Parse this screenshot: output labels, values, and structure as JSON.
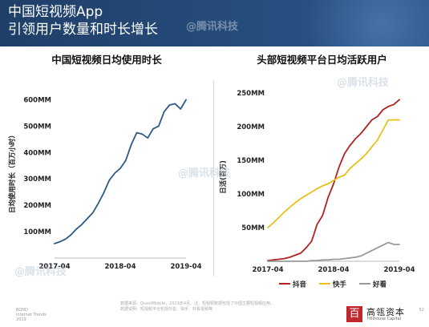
{
  "slide": {
    "title_line1": "中国短视频App",
    "title_line2": "引领用户数量和时长增长"
  },
  "chart_data": [
    {
      "type": "line",
      "title": "中国短视频日均使用时长",
      "xlabel": "",
      "ylabel": "日均使用时长（百万小时）",
      "x_ticks": [
        "2017-04",
        "2018-04",
        "2019-04"
      ],
      "y_ticks": [
        "100MM",
        "200MM",
        "300MM",
        "400MM",
        "500MM",
        "600MM"
      ],
      "ylim": [
        0,
        650
      ],
      "grid": false,
      "x": [
        "2017-04",
        "2017-05",
        "2017-06",
        "2017-07",
        "2017-08",
        "2017-09",
        "2017-10",
        "2017-11",
        "2017-12",
        "2018-01",
        "2018-02",
        "2018-03",
        "2018-04",
        "2018-05",
        "2018-06",
        "2018-07",
        "2018-08",
        "2018-09",
        "2018-10",
        "2018-11",
        "2018-12",
        "2019-01",
        "2019-02",
        "2019-03",
        "2019-04"
      ],
      "series": [
        {
          "name": "",
          "color": "#2c5a86",
          "values": [
            55,
            62,
            72,
            88,
            110,
            128,
            150,
            172,
            208,
            248,
            295,
            322,
            340,
            370,
            430,
            475,
            470,
            455,
            490,
            500,
            555,
            580,
            585,
            565,
            600
          ]
        }
      ]
    },
    {
      "type": "line",
      "title": "头部短视频平台日均活跃用户",
      "xlabel": "",
      "ylabel": "日活(百万)",
      "x_ticks": [
        "2017-04",
        "2018-04",
        "2019-04"
      ],
      "y_ticks": [
        "50MM",
        "100MM",
        "150MM",
        "200MM",
        "250MM"
      ],
      "ylim": [
        0,
        250
      ],
      "grid": false,
      "legend": "bottom",
      "x": [
        "2017-04",
        "2017-05",
        "2017-06",
        "2017-07",
        "2017-08",
        "2017-09",
        "2017-10",
        "2017-11",
        "2017-12",
        "2018-01",
        "2018-02",
        "2018-03",
        "2018-04",
        "2018-05",
        "2018-06",
        "2018-07",
        "2018-08",
        "2018-09",
        "2018-10",
        "2018-11",
        "2018-12",
        "2019-01",
        "2019-02",
        "2019-03",
        "2019-04"
      ],
      "series": [
        {
          "name": "抖音",
          "color": "#b22222",
          "values": [
            1,
            2,
            3,
            4,
            6,
            9,
            12,
            20,
            30,
            55,
            68,
            95,
            115,
            140,
            160,
            172,
            182,
            190,
            200,
            210,
            215,
            225,
            230,
            233,
            240
          ]
        },
        {
          "name": "快手",
          "color": "#e8c11a",
          "values": [
            50,
            57,
            65,
            73,
            80,
            87,
            93,
            98,
            103,
            108,
            112,
            115,
            120,
            125,
            128,
            138,
            145,
            152,
            160,
            170,
            180,
            195,
            210,
            210,
            210
          ]
        },
        {
          "name": "好看",
          "color": "#9a9a9a",
          "values": [
            0,
            0,
            0,
            0,
            0,
            0,
            0,
            0,
            1,
            1,
            2,
            2,
            3,
            3,
            4,
            5,
            6,
            8,
            12,
            16,
            20,
            24,
            28,
            25,
            25
          ]
        }
      ]
    }
  ],
  "footer": {
    "source": "数据来源：QuestMobile，2019年4月。注：短视频数据包括了中国主要短视频应用。",
    "source2": "数据说明：短视频平台包括抖音、快手、好看视频等",
    "bond_line1": "BOND",
    "bond_line2": "Internet Trends",
    "bond_line3": "2019",
    "logo_mark": "百",
    "logo_name": "高瓴资本",
    "logo_sub": "Hillhouse Capital",
    "page": "52"
  },
  "watermarks": [
    "@腾讯科技",
    "@腾讯科技",
    "@腾讯科技",
    "@腾讯科技"
  ]
}
